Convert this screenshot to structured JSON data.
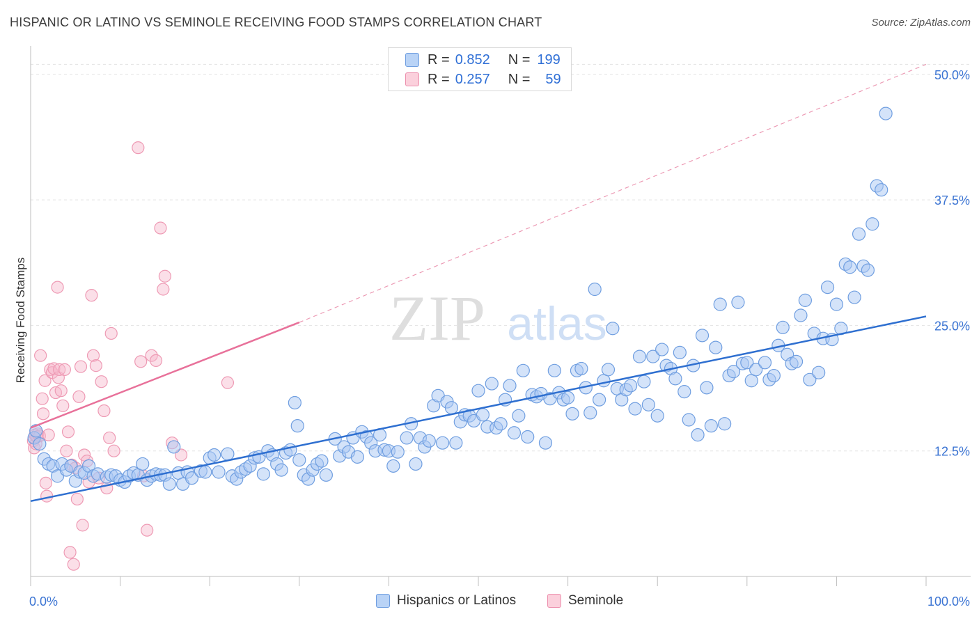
{
  "header": {
    "title": "HISPANIC OR LATINO VS SEMINOLE RECEIVING FOOD STAMPS CORRELATION CHART",
    "source": "Source: ZipAtlas.com"
  },
  "legend": {
    "rows": [
      {
        "r_label": "R =",
        "r_value": "0.852",
        "n_label": "N =",
        "n_value": "199",
        "color": "#a9c8f3"
      },
      {
        "r_label": "R =",
        "r_value": "0.257",
        "n_label": "N =",
        "n_value": "59",
        "color": "#f7b9cb"
      }
    ]
  },
  "bottom_legend": {
    "items": [
      {
        "label": "Hispanics or Latinos",
        "color": "#a9c8f3"
      },
      {
        "label": "Seminole",
        "color": "#f7b9cb"
      }
    ]
  },
  "watermark": {
    "zip": "ZIP",
    "atlas": "atlas"
  },
  "chart_data": {
    "type": "scatter",
    "title": "HISPANIC OR LATINO VS SEMINOLE RECEIVING FOOD STAMPS CORRELATION CHART",
    "xlabel": "",
    "ylabel": "Receiving Food Stamps",
    "xlim": [
      0,
      100
    ],
    "ylim": [
      0,
      52
    ],
    "x_tick_labels": [
      "0.0%",
      "100.0%"
    ],
    "y_ticks": [
      12.5,
      25.0,
      37.5,
      50.0
    ],
    "y_tick_labels": [
      "12.5%",
      "25.0%",
      "37.5%",
      "50.0%"
    ],
    "grid": true,
    "legend_position": "top-center",
    "colors": {
      "blue": "#2e6fd0",
      "pink": "#e8719a",
      "blue_fill": "#a9c8f3",
      "pink_fill": "#f7b9cb"
    },
    "series": [
      {
        "name": "Hispanics or Latinos",
        "color": "#2e6fd0",
        "trend": {
          "x": [
            0,
            100
          ],
          "y": [
            7.5,
            25.9
          ]
        },
        "points": [
          [
            0.4,
            13.8
          ],
          [
            0.6,
            14.5
          ],
          [
            1.0,
            13.2
          ],
          [
            1.5,
            11.7
          ],
          [
            2.0,
            11.2
          ],
          [
            2.5,
            11.0
          ],
          [
            3.0,
            10.0
          ],
          [
            3.5,
            11.2
          ],
          [
            4.0,
            10.6
          ],
          [
            4.5,
            11.0
          ],
          [
            5.0,
            9.5
          ],
          [
            5.5,
            10.4
          ],
          [
            6.0,
            10.3
          ],
          [
            6.5,
            11.0
          ],
          [
            7.0,
            10.0
          ],
          [
            7.5,
            10.2
          ],
          [
            8.5,
            9.9
          ],
          [
            9.0,
            10.1
          ],
          [
            9.5,
            10.0
          ],
          [
            10.0,
            9.6
          ],
          [
            10.5,
            9.4
          ],
          [
            11.0,
            10.0
          ],
          [
            11.5,
            10.3
          ],
          [
            12.0,
            10.1
          ],
          [
            12.5,
            11.2
          ],
          [
            13.0,
            9.6
          ],
          [
            13.5,
            10.0
          ],
          [
            14.0,
            10.2
          ],
          [
            14.5,
            10.1
          ],
          [
            15.0,
            10.1
          ],
          [
            15.5,
            9.2
          ],
          [
            16.0,
            12.9
          ],
          [
            16.5,
            10.3
          ],
          [
            17.0,
            9.2
          ],
          [
            17.5,
            10.4
          ],
          [
            18.0,
            9.8
          ],
          [
            19.0,
            10.5
          ],
          [
            19.5,
            10.4
          ],
          [
            20.0,
            11.8
          ],
          [
            20.5,
            12.1
          ],
          [
            21.0,
            10.4
          ],
          [
            22.0,
            12.2
          ],
          [
            22.5,
            10.0
          ],
          [
            23.0,
            9.7
          ],
          [
            23.5,
            10.4
          ],
          [
            24.0,
            10.7
          ],
          [
            24.5,
            11.0
          ],
          [
            25.0,
            11.8
          ],
          [
            25.5,
            11.9
          ],
          [
            26.0,
            10.2
          ],
          [
            26.5,
            12.5
          ],
          [
            27.0,
            12.1
          ],
          [
            27.5,
            11.2
          ],
          [
            28.0,
            10.6
          ],
          [
            28.5,
            12.3
          ],
          [
            29.0,
            12.6
          ],
          [
            29.5,
            17.3
          ],
          [
            29.8,
            15.0
          ],
          [
            30.0,
            11.6
          ],
          [
            30.5,
            10.1
          ],
          [
            31.0,
            9.7
          ],
          [
            31.5,
            10.6
          ],
          [
            32.0,
            11.2
          ],
          [
            32.5,
            11.5
          ],
          [
            33.0,
            10.1
          ],
          [
            34.0,
            13.7
          ],
          [
            34.5,
            12.0
          ],
          [
            35.0,
            12.9
          ],
          [
            35.5,
            12.4
          ],
          [
            36.0,
            13.8
          ],
          [
            36.5,
            11.9
          ],
          [
            37.0,
            14.4
          ],
          [
            37.5,
            13.9
          ],
          [
            38.0,
            13.3
          ],
          [
            38.5,
            12.5
          ],
          [
            39.0,
            14.1
          ],
          [
            39.5,
            12.6
          ],
          [
            40.0,
            12.5
          ],
          [
            40.5,
            11.0
          ],
          [
            41.0,
            12.4
          ],
          [
            42.0,
            13.8
          ],
          [
            42.5,
            15.2
          ],
          [
            43.0,
            11.2
          ],
          [
            43.5,
            13.8
          ],
          [
            44.0,
            12.9
          ],
          [
            44.5,
            13.5
          ],
          [
            45.0,
            17.0
          ],
          [
            45.5,
            18.0
          ],
          [
            46.0,
            13.3
          ],
          [
            46.5,
            17.4
          ],
          [
            47.0,
            16.8
          ],
          [
            47.5,
            13.3
          ],
          [
            48.0,
            15.4
          ],
          [
            48.5,
            16.1
          ],
          [
            49.0,
            16.0
          ],
          [
            49.5,
            15.5
          ],
          [
            50.0,
            18.5
          ],
          [
            50.5,
            16.1
          ],
          [
            51.0,
            14.9
          ],
          [
            51.5,
            19.2
          ],
          [
            52.0,
            14.8
          ],
          [
            52.5,
            15.2
          ],
          [
            53.0,
            17.6
          ],
          [
            53.5,
            19.0
          ],
          [
            54.0,
            14.3
          ],
          [
            54.5,
            16.0
          ],
          [
            55.0,
            20.5
          ],
          [
            55.5,
            13.9
          ],
          [
            56.0,
            18.1
          ],
          [
            56.5,
            17.9
          ],
          [
            57.0,
            18.2
          ],
          [
            57.5,
            13.3
          ],
          [
            58.0,
            17.7
          ],
          [
            58.5,
            20.5
          ],
          [
            59.0,
            18.3
          ],
          [
            59.5,
            17.6
          ],
          [
            60.0,
            17.8
          ],
          [
            60.5,
            16.2
          ],
          [
            61.0,
            20.5
          ],
          [
            61.5,
            20.7
          ],
          [
            62.0,
            18.8
          ],
          [
            62.5,
            16.3
          ],
          [
            63.0,
            28.6
          ],
          [
            63.5,
            17.6
          ],
          [
            64.0,
            19.5
          ],
          [
            64.5,
            20.6
          ],
          [
            65.0,
            24.7
          ],
          [
            65.5,
            18.7
          ],
          [
            66.0,
            17.6
          ],
          [
            66.5,
            18.6
          ],
          [
            67.0,
            19.0
          ],
          [
            67.5,
            16.7
          ],
          [
            68.0,
            21.9
          ],
          [
            68.5,
            19.4
          ],
          [
            69.0,
            17.1
          ],
          [
            69.5,
            21.9
          ],
          [
            70.0,
            16.0
          ],
          [
            70.5,
            22.6
          ],
          [
            71.0,
            21.0
          ],
          [
            71.5,
            20.7
          ],
          [
            72.0,
            19.7
          ],
          [
            72.5,
            22.3
          ],
          [
            73.0,
            18.4
          ],
          [
            73.5,
            15.6
          ],
          [
            74.0,
            21.0
          ],
          [
            74.5,
            14.1
          ],
          [
            75.0,
            24.0
          ],
          [
            75.5,
            18.8
          ],
          [
            76.0,
            15.0
          ],
          [
            76.5,
            22.8
          ],
          [
            77.0,
            27.1
          ],
          [
            77.5,
            15.2
          ],
          [
            78.0,
            20.0
          ],
          [
            78.5,
            20.4
          ],
          [
            79.0,
            27.3
          ],
          [
            79.5,
            21.2
          ],
          [
            80.0,
            21.3
          ],
          [
            80.5,
            19.5
          ],
          [
            81.0,
            20.6
          ],
          [
            82.0,
            21.3
          ],
          [
            82.5,
            19.6
          ],
          [
            83.0,
            20.0
          ],
          [
            83.5,
            23.0
          ],
          [
            84.0,
            24.8
          ],
          [
            84.5,
            22.1
          ],
          [
            85.0,
            21.2
          ],
          [
            85.5,
            21.4
          ],
          [
            86.0,
            26.0
          ],
          [
            86.5,
            27.5
          ],
          [
            87.0,
            19.6
          ],
          [
            87.5,
            24.2
          ],
          [
            88.0,
            20.3
          ],
          [
            88.5,
            23.7
          ],
          [
            89.0,
            28.8
          ],
          [
            89.5,
            23.6
          ],
          [
            90.0,
            27.1
          ],
          [
            90.5,
            24.7
          ],
          [
            91.0,
            31.1
          ],
          [
            91.5,
            30.8
          ],
          [
            92.0,
            27.8
          ],
          [
            92.5,
            34.1
          ],
          [
            93.0,
            30.9
          ],
          [
            93.5,
            30.5
          ],
          [
            94.0,
            35.1
          ],
          [
            94.5,
            38.9
          ],
          [
            95.0,
            38.5
          ],
          [
            95.5,
            46.1
          ]
        ]
      },
      {
        "name": "Seminole",
        "color": "#e8719a",
        "trend": {
          "x": [
            0,
            30
          ],
          "y": [
            14.8,
            25.3
          ],
          "dashed_to": {
            "x": 100,
            "y": 51.0
          }
        },
        "points": [
          [
            0.3,
            13.5
          ],
          [
            0.4,
            12.8
          ],
          [
            0.5,
            14.1
          ],
          [
            0.6,
            13.2
          ],
          [
            0.7,
            13.9
          ],
          [
            0.8,
            14.2
          ],
          [
            1.0,
            14.0
          ],
          [
            1.1,
            22.0
          ],
          [
            1.3,
            17.7
          ],
          [
            1.4,
            16.2
          ],
          [
            1.6,
            19.5
          ],
          [
            1.7,
            9.3
          ],
          [
            1.8,
            8.0
          ],
          [
            2.0,
            14.1
          ],
          [
            2.2,
            20.6
          ],
          [
            2.4,
            20.3
          ],
          [
            2.6,
            20.7
          ],
          [
            2.8,
            18.3
          ],
          [
            3.0,
            28.8
          ],
          [
            3.1,
            19.8
          ],
          [
            3.2,
            20.6
          ],
          [
            3.4,
            18.5
          ],
          [
            3.6,
            17.0
          ],
          [
            3.8,
            20.6
          ],
          [
            4.0,
            12.5
          ],
          [
            4.2,
            14.4
          ],
          [
            4.4,
            2.4
          ],
          [
            4.6,
            11.1
          ],
          [
            4.8,
            1.2
          ],
          [
            5.0,
            10.8
          ],
          [
            5.2,
            7.7
          ],
          [
            5.4,
            17.9
          ],
          [
            5.6,
            20.9
          ],
          [
            5.8,
            5.1
          ],
          [
            6.0,
            12.1
          ],
          [
            6.3,
            11.5
          ],
          [
            6.5,
            9.4
          ],
          [
            6.8,
            28.0
          ],
          [
            7.0,
            22.0
          ],
          [
            7.3,
            21.0
          ],
          [
            7.6,
            9.8
          ],
          [
            7.9,
            19.4
          ],
          [
            8.2,
            16.5
          ],
          [
            8.5,
            8.8
          ],
          [
            8.8,
            13.8
          ],
          [
            9.0,
            24.2
          ],
          [
            9.3,
            12.5
          ],
          [
            12.0,
            42.7
          ],
          [
            12.3,
            21.4
          ],
          [
            12.6,
            10.0
          ],
          [
            13.0,
            4.6
          ],
          [
            13.5,
            22.0
          ],
          [
            14.0,
            21.5
          ],
          [
            14.5,
            34.7
          ],
          [
            14.8,
            28.6
          ],
          [
            15.0,
            29.9
          ],
          [
            15.8,
            13.3
          ],
          [
            16.8,
            12.1
          ],
          [
            22.0,
            19.3
          ]
        ]
      }
    ]
  }
}
